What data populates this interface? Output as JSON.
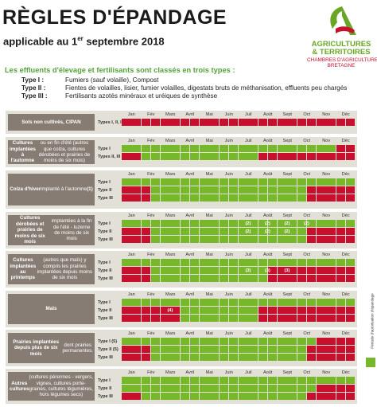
{
  "header": {
    "title": "RÈGLES D'ÉPANDAGE",
    "subtitle_pre": "applicable au 1",
    "subtitle_sup": "er",
    "subtitle_post": " septembre 2018"
  },
  "logo": {
    "line1": "AGRICULTURES",
    "line2": "& TERRITOIRES",
    "line3": "CHAMBRES D'AGRICULTURE",
    "line4": "BRETAGNE"
  },
  "intro": "Les effluents d'élevage et fertilisants sont classés en trois types :",
  "types": [
    {
      "key": "Type I :",
      "desc": "Fumiers (sauf volaille), Compost"
    },
    {
      "key": "Type II :",
      "desc": "Fientes de volailles, lisier, fumier volailles, digestats bruts de méthanisation, effluents peu chargés"
    },
    {
      "key": "Type III :",
      "desc": "Fertilisants azotés minéraux et uréiques de synthèse"
    }
  ],
  "side_label": "Période d'autorisation d'épandage",
  "colors": {
    "allowed": "#77b82a",
    "forbidden": "#c8102e",
    "block_bg": "#e3e0d8",
    "label_bg": "#877c74"
  },
  "months": [
    "Jan",
    "Fév",
    "Mars",
    "Avril",
    "Mai",
    "Juin",
    "Juil",
    "Août",
    "Sept",
    "Oct",
    "Nov",
    "Déc"
  ],
  "blocks": [
    {
      "label": "<b>Sols non cultivés, CIPAN</b>",
      "rows": [
        {
          "type": "Types I, II, III",
          "cells": "RRRRRRRRRRRRRRRRRRRRRRRRRRRRRRRRRRRRRRRRRRRRRRRR",
          "notes": []
        }
      ]
    },
    {
      "label": "<b>Cultures implantées à l'automne</b> ou en fin d'été (autres que colza, cultures dérobées et prairies de moins de six mois)",
      "rows": [
        {
          "type": "Type I",
          "cells": "GGGGGGGGGGGGGGGGGGGGGGGGGGGGGGGGGGGGGGGGGRGGRRRR",
          "notes": []
        },
        {
          "type": "Types II, III",
          "cells": "RRRRGGGGGGGGGGGGGGGGGGGGGGGGRRRRRRRRRRRRRRRRRRRR",
          "notes": []
        }
      ]
    },
    {
      "label": "<b>Colza d'hiver</b> implanté à l'automne <b>(1)</b>",
      "rows": [
        {
          "type": "Type I",
          "cells": "GGGGGGGGGGGGGGGGGGGGGGGGGGGGGGGGGGGGGGGGGGGGGGGG",
          "notes": []
        },
        {
          "type": "Type II",
          "cells": "RRRRRRGGGGGGGGGGGGGGGGGGGGGGGGGGGGGGGGRRRRRRRRRR",
          "notes": []
        },
        {
          "type": "Type III",
          "cells": "RRRRRRGGGGGGGGGGGGGGGGGGGGGGGGGGGGGGGGRRRRRRRRRR",
          "notes": []
        }
      ]
    },
    {
      "label": "<b>Cultures dérobées et prairies de moins de six mois</b> implantées à la fin de l'été - luzerne de moins de six mois",
      "rows": [
        {
          "type": "Type I",
          "cells": "GGGGGGGGGGGGGGGGGGGGGGGGGGGGGGGGGGGGGGGGGGGGGGGG",
          "notes": [
            {
              "m": 6,
              "t": "(2)"
            },
            {
              "m": 7,
              "t": "(2)"
            },
            {
              "m": 8,
              "t": "(2)"
            },
            {
              "m": 9,
              "t": "(2)"
            }
          ]
        },
        {
          "type": "Type II",
          "cells": "RRRRRRGGGGGGGGGGGGGGGGGGGGGGGGGGGGGGGGRRRRRRRRRR",
          "notes": [
            {
              "m": 6,
              "t": "(2)"
            },
            {
              "m": 7,
              "t": "(2)"
            },
            {
              "m": 8,
              "t": "(2)"
            }
          ]
        },
        {
          "type": "Type III",
          "cells": "RRRRRRGGGGGGGGGGGGGGGGGGGGGGGGGGGGGGGGRRRRRRRRRR",
          "notes": []
        }
      ]
    },
    {
      "label": "<b>Cultures implantées au printemps</b> (autres que maïs) y compris les prairies implantées depuis moins de six mois",
      "rows": [
        {
          "type": "Type I",
          "cells": "GGGGGGGGGGGGGGGGGGGGGGGGGGGGGGGGGGGGGGGGGGGGGGGG",
          "notes": []
        },
        {
          "type": "Type II",
          "cells": "RRRRRRGGGGGGGGGGGGGGGGGGGGGGGGRRRRRRRRRRRRRRRRRR",
          "notes": [
            {
              "m": 6,
              "t": "(3)"
            },
            {
              "m": 7,
              "t": "(3)"
            },
            {
              "m": 8,
              "t": "(3)"
            }
          ]
        },
        {
          "type": "Type III",
          "cells": "RRRRRRGGGGGGGGGGGGGGGGGGGGGGGGRRRRRRRRRRRRRRRRRR",
          "notes": []
        }
      ]
    },
    {
      "label": "<b>Maïs</b>",
      "rows": [
        {
          "type": "Type I",
          "cells": "GGGGGGGGGGGGGGGGGGGGGGGGGGGGGGGGGGGGGGGGGGGGGGGG",
          "notes": []
        },
        {
          "type": "Type II",
          "cells": "RRRRRRRRRRRRGGGGGGGGGGGGGGGGRRRRRRRRRRRRRRRRRRRR",
          "notes": [
            {
              "m": 2,
              "t": "(4)"
            }
          ]
        },
        {
          "type": "Type III",
          "cells": "RRRRRRRRRRRRGGGGGGGGGGGGGGGGRRRRRRRRRRRRRRRRRRRR",
          "notes": []
        }
      ]
    },
    {
      "label": "<b>Prairies implantées depuis plus de six mois</b> dont prairies permanentes.",
      "rows": [
        {
          "type": "Type I (5)",
          "cells": "GGGGGGGGGGGGGGGGGGGGGGGGGGGGGGGGGGGGGGGGRRRRRRRR",
          "notes": []
        },
        {
          "type": "Type II (5)",
          "cells": "RRRRRRGGGGGGGGGGGGGGGGGGGGGGGGGGGGGGGGRRRRRRRRRR",
          "notes": []
        },
        {
          "type": "Type III",
          "cells": "RRRRRRGGGGGGGGGGGGGGGGGGGGGGGGGGGGGGGGRRRRRRRRRR",
          "notes": []
        }
      ]
    },
    {
      "label": "<b>Autres cultures</b> (cultures pérennes - vergers, vignes, cultures porte-graines, cultures légumières, hors légumes secs)",
      "rows": [
        {
          "type": "Type I",
          "cells": "GGGGGGGGGGGGGGGGGGGGGGGGGGGGGGGGGGGGGGGGGGGGGGGG",
          "notes": []
        },
        {
          "type": "Type II",
          "cells": "GGGGGGGGGGGGGGGGGGGGGGGGGGGGGGGGGGGGGGGGRRRRRRRR",
          "notes": []
        },
        {
          "type": "Type III",
          "cells": "RRRRGGGGGGGGGGGGGGGGGGGGGGGGGGGGGGGGGGRRRRRRRRRR",
          "notes": []
        }
      ]
    }
  ]
}
